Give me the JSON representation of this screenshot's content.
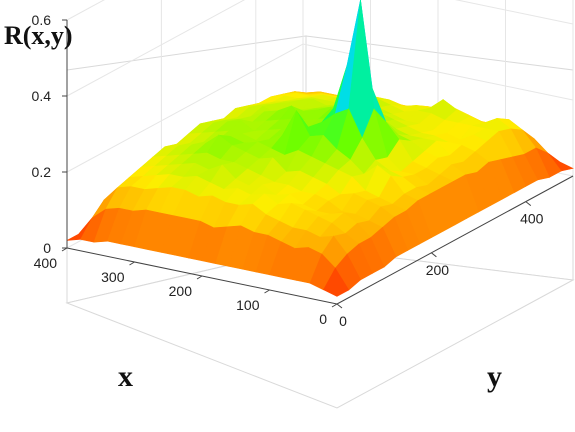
{
  "chart_data": {
    "type": "surface",
    "zlabel": "R(x,y)",
    "xlabel": "x",
    "ylabel": "y",
    "xlim": [
      0,
      400
    ],
    "ylim": [
      0,
      500
    ],
    "zlim": [
      0,
      0.6
    ],
    "x_ticks": [
      "0",
      "100",
      "200",
      "300",
      "400"
    ],
    "y_ticks": [
      "0",
      "200",
      "400"
    ],
    "z_ticks": [
      "0",
      "0.2",
      "0.4",
      "0.6"
    ],
    "grid": true,
    "colormap": [
      "#ff1a00",
      "#ff8800",
      "#ffee00",
      "#66ff00",
      "#00ff66",
      "#00d8ff",
      "#3344ff",
      "#ff00cc"
    ],
    "peak": {
      "x": 140,
      "y": 240,
      "z": 0.58
    },
    "surface_rows_x": [
      0,
      20,
      40,
      60,
      80,
      100,
      120,
      140,
      160,
      180,
      200,
      220,
      240,
      260,
      280,
      300,
      320,
      340,
      360,
      380,
      400
    ],
    "surface_cols_y": [
      0,
      25,
      50,
      75,
      100,
      125,
      150,
      175,
      200,
      225,
      250,
      275,
      300,
      325,
      350,
      375,
      400,
      425,
      450,
      475,
      500
    ],
    "surface_z": [
      [
        0.02,
        0.02,
        0.03,
        0.03,
        0.03,
        0.04,
        0.04,
        0.04,
        0.04,
        0.04,
        0.04,
        0.04,
        0.04,
        0.04,
        0.04,
        0.04,
        0.04,
        0.04,
        0.03,
        0.03,
        0.02
      ],
      [
        0.03,
        0.07,
        0.09,
        0.1,
        0.1,
        0.11,
        0.12,
        0.12,
        0.13,
        0.13,
        0.13,
        0.13,
        0.13,
        0.12,
        0.13,
        0.12,
        0.11,
        0.1,
        0.1,
        0.07,
        0.03
      ],
      [
        0.04,
        0.1,
        0.13,
        0.12,
        0.13,
        0.12,
        0.14,
        0.13,
        0.14,
        0.14,
        0.13,
        0.14,
        0.15,
        0.14,
        0.15,
        0.16,
        0.17,
        0.16,
        0.14,
        0.1,
        0.04
      ],
      [
        0.04,
        0.11,
        0.12,
        0.14,
        0.15,
        0.13,
        0.15,
        0.14,
        0.18,
        0.16,
        0.15,
        0.15,
        0.16,
        0.15,
        0.16,
        0.17,
        0.17,
        0.18,
        0.16,
        0.1,
        0.04
      ],
      [
        0.04,
        0.1,
        0.13,
        0.15,
        0.14,
        0.13,
        0.16,
        0.15,
        0.2,
        0.17,
        0.15,
        0.16,
        0.17,
        0.18,
        0.16,
        0.15,
        0.17,
        0.16,
        0.14,
        0.1,
        0.04
      ],
      [
        0.04,
        0.11,
        0.13,
        0.16,
        0.14,
        0.15,
        0.15,
        0.18,
        0.17,
        0.19,
        0.18,
        0.21,
        0.19,
        0.18,
        0.17,
        0.16,
        0.17,
        0.17,
        0.14,
        0.11,
        0.04
      ],
      [
        0.04,
        0.12,
        0.14,
        0.17,
        0.15,
        0.16,
        0.17,
        0.19,
        0.2,
        0.24,
        0.3,
        0.25,
        0.2,
        0.18,
        0.17,
        0.16,
        0.17,
        0.18,
        0.15,
        0.11,
        0.04
      ],
      [
        0.04,
        0.12,
        0.15,
        0.16,
        0.17,
        0.16,
        0.18,
        0.2,
        0.22,
        0.31,
        0.58,
        0.33,
        0.23,
        0.19,
        0.18,
        0.17,
        0.18,
        0.2,
        0.16,
        0.11,
        0.04
      ],
      [
        0.04,
        0.13,
        0.17,
        0.18,
        0.16,
        0.17,
        0.19,
        0.21,
        0.25,
        0.29,
        0.4,
        0.3,
        0.22,
        0.2,
        0.19,
        0.17,
        0.18,
        0.17,
        0.15,
        0.11,
        0.04
      ],
      [
        0.04,
        0.12,
        0.16,
        0.17,
        0.18,
        0.17,
        0.18,
        0.22,
        0.24,
        0.26,
        0.28,
        0.24,
        0.22,
        0.21,
        0.2,
        0.18,
        0.17,
        0.17,
        0.15,
        0.11,
        0.04
      ],
      [
        0.04,
        0.11,
        0.16,
        0.18,
        0.17,
        0.18,
        0.21,
        0.2,
        0.3,
        0.24,
        0.22,
        0.23,
        0.24,
        0.21,
        0.2,
        0.19,
        0.18,
        0.16,
        0.14,
        0.1,
        0.04
      ],
      [
        0.04,
        0.12,
        0.17,
        0.17,
        0.18,
        0.19,
        0.2,
        0.21,
        0.23,
        0.22,
        0.21,
        0.22,
        0.23,
        0.22,
        0.21,
        0.2,
        0.19,
        0.17,
        0.14,
        0.1,
        0.04
      ],
      [
        0.04,
        0.12,
        0.16,
        0.18,
        0.21,
        0.2,
        0.21,
        0.22,
        0.21,
        0.22,
        0.23,
        0.21,
        0.22,
        0.21,
        0.2,
        0.19,
        0.18,
        0.17,
        0.14,
        0.1,
        0.04
      ],
      [
        0.04,
        0.12,
        0.17,
        0.19,
        0.19,
        0.2,
        0.22,
        0.21,
        0.2,
        0.21,
        0.22,
        0.24,
        0.21,
        0.2,
        0.19,
        0.18,
        0.19,
        0.16,
        0.14,
        0.1,
        0.04
      ],
      [
        0.04,
        0.12,
        0.17,
        0.18,
        0.2,
        0.21,
        0.24,
        0.22,
        0.21,
        0.2,
        0.21,
        0.22,
        0.2,
        0.19,
        0.2,
        0.18,
        0.17,
        0.16,
        0.14,
        0.1,
        0.04
      ],
      [
        0.04,
        0.12,
        0.16,
        0.18,
        0.19,
        0.2,
        0.21,
        0.2,
        0.21,
        0.22,
        0.2,
        0.21,
        0.19,
        0.2,
        0.19,
        0.18,
        0.17,
        0.15,
        0.13,
        0.1,
        0.04
      ],
      [
        0.04,
        0.11,
        0.15,
        0.17,
        0.18,
        0.19,
        0.2,
        0.19,
        0.2,
        0.21,
        0.2,
        0.19,
        0.2,
        0.19,
        0.18,
        0.17,
        0.16,
        0.15,
        0.13,
        0.1,
        0.04
      ],
      [
        0.04,
        0.11,
        0.15,
        0.16,
        0.17,
        0.18,
        0.19,
        0.18,
        0.19,
        0.2,
        0.19,
        0.18,
        0.19,
        0.18,
        0.17,
        0.17,
        0.16,
        0.14,
        0.13,
        0.09,
        0.04
      ],
      [
        0.03,
        0.1,
        0.14,
        0.15,
        0.16,
        0.17,
        0.18,
        0.17,
        0.18,
        0.19,
        0.18,
        0.17,
        0.18,
        0.17,
        0.16,
        0.16,
        0.15,
        0.14,
        0.12,
        0.09,
        0.03
      ],
      [
        0.03,
        0.07,
        0.1,
        0.11,
        0.12,
        0.13,
        0.13,
        0.13,
        0.14,
        0.14,
        0.14,
        0.13,
        0.13,
        0.13,
        0.12,
        0.12,
        0.11,
        0.1,
        0.09,
        0.07,
        0.03
      ],
      [
        0.02,
        0.02,
        0.03,
        0.03,
        0.03,
        0.04,
        0.04,
        0.04,
        0.04,
        0.04,
        0.04,
        0.04,
        0.04,
        0.04,
        0.04,
        0.04,
        0.04,
        0.04,
        0.03,
        0.03,
        0.02
      ]
    ]
  }
}
